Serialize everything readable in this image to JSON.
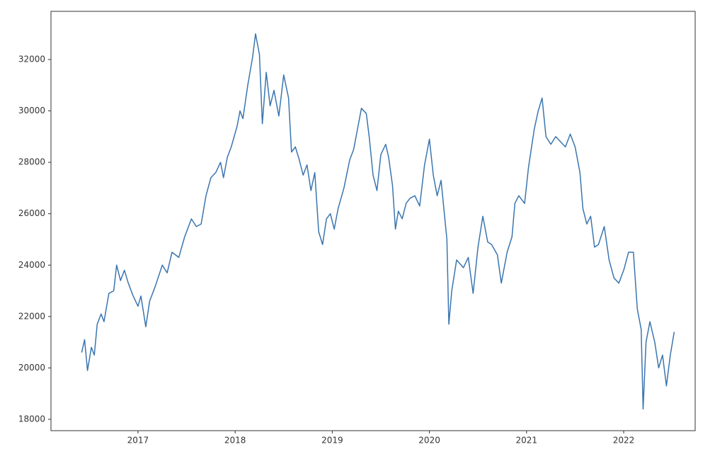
{
  "chart_data": {
    "type": "line",
    "x": [
      2016.42,
      2016.45,
      2016.48,
      2016.52,
      2016.55,
      2016.58,
      2016.62,
      2016.65,
      2016.7,
      2016.75,
      2016.78,
      2016.82,
      2016.86,
      2016.9,
      2016.95,
      2017.0,
      2017.03,
      2017.08,
      2017.12,
      2017.18,
      2017.25,
      2017.3,
      2017.35,
      2017.42,
      2017.48,
      2017.55,
      2017.6,
      2017.65,
      2017.7,
      2017.75,
      2017.8,
      2017.85,
      2017.88,
      2017.92,
      2017.96,
      2018.02,
      2018.05,
      2018.08,
      2018.13,
      2018.18,
      2018.21,
      2018.25,
      2018.28,
      2018.32,
      2018.36,
      2018.4,
      2018.45,
      2018.5,
      2018.55,
      2018.58,
      2018.62,
      2018.66,
      2018.7,
      2018.74,
      2018.78,
      2018.82,
      2018.86,
      2018.9,
      2018.94,
      2018.98,
      2019.02,
      2019.06,
      2019.12,
      2019.18,
      2019.22,
      2019.26,
      2019.3,
      2019.35,
      2019.38,
      2019.42,
      2019.46,
      2019.5,
      2019.55,
      2019.58,
      2019.62,
      2019.65,
      2019.68,
      2019.72,
      2019.76,
      2019.8,
      2019.85,
      2019.9,
      2019.95,
      2020.0,
      2020.04,
      2020.08,
      2020.12,
      2020.18,
      2020.2,
      2020.23,
      2020.28,
      2020.35,
      2020.4,
      2020.45,
      2020.5,
      2020.55,
      2020.6,
      2020.64,
      2020.7,
      2020.74,
      2020.8,
      2020.85,
      2020.88,
      2020.92,
      2020.98,
      2021.02,
      2021.08,
      2021.12,
      2021.16,
      2021.2,
      2021.25,
      2021.3,
      2021.35,
      2021.4,
      2021.45,
      2021.5,
      2021.55,
      2021.58,
      2021.62,
      2021.66,
      2021.7,
      2021.74,
      2021.8,
      2021.85,
      2021.9,
      2021.95,
      2022.0,
      2022.05,
      2022.1,
      2022.14,
      2022.18,
      2022.2,
      2022.23,
      2022.27,
      2022.32,
      2022.36,
      2022.4,
      2022.44,
      2022.48,
      2022.52
    ],
    "series": [
      {
        "color": "#3a75af",
        "values": [
          20600,
          21100,
          19900,
          20800,
          20500,
          21700,
          22100,
          21800,
          22900,
          23000,
          24000,
          23400,
          23800,
          23300,
          22800,
          22400,
          22800,
          21600,
          22600,
          23200,
          24000,
          23700,
          24500,
          24300,
          25100,
          25800,
          25500,
          25600,
          26700,
          27400,
          27600,
          28000,
          27400,
          28200,
          28600,
          29400,
          30000,
          29700,
          31000,
          32100,
          33000,
          32200,
          29500,
          31500,
          30200,
          30800,
          29800,
          31400,
          30500,
          28400,
          28600,
          28100,
          27500,
          27900,
          26900,
          27600,
          25300,
          24800,
          25800,
          26000,
          25400,
          26200,
          27000,
          28100,
          28500,
          29300,
          30100,
          29900,
          29000,
          27500,
          26900,
          28300,
          28700,
          28200,
          27100,
          25400,
          26100,
          25800,
          26400,
          26600,
          26700,
          26300,
          27900,
          28900,
          27500,
          26700,
          27300,
          25000,
          21700,
          23000,
          24200,
          23900,
          24300,
          22900,
          24700,
          25900,
          24900,
          24800,
          24400,
          23300,
          24500,
          25100,
          26400,
          26700,
          26400,
          27800,
          29300,
          30000,
          30500,
          29000,
          28700,
          29000,
          28800,
          28600,
          29100,
          28600,
          27600,
          26200,
          25600,
          25900,
          24700,
          24800,
          25500,
          24200,
          23500,
          23300,
          23800,
          24500,
          24500,
          22300,
          21500,
          18400,
          21000,
          21800,
          21000,
          20000,
          20500,
          19300,
          20500,
          21400
        ]
      }
    ],
    "xlim": [
      2016.104,
      2022.736
    ],
    "xticks": [
      2017,
      2018,
      2019,
      2020,
      2021,
      2022
    ],
    "ylim": [
      17559,
      33874
    ],
    "yticks": [
      18000,
      20000,
      22000,
      24000,
      26000,
      28000,
      30000,
      32000
    ]
  }
}
